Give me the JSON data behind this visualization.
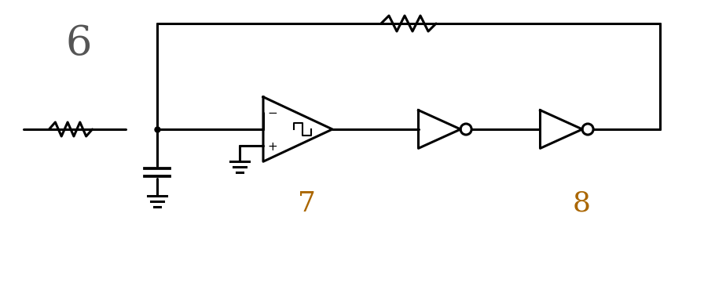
{
  "bg_color": "#ffffff",
  "line_color": "#000000",
  "label_6": "6",
  "label_7": "7",
  "label_8": "8",
  "lw": 2.2
}
